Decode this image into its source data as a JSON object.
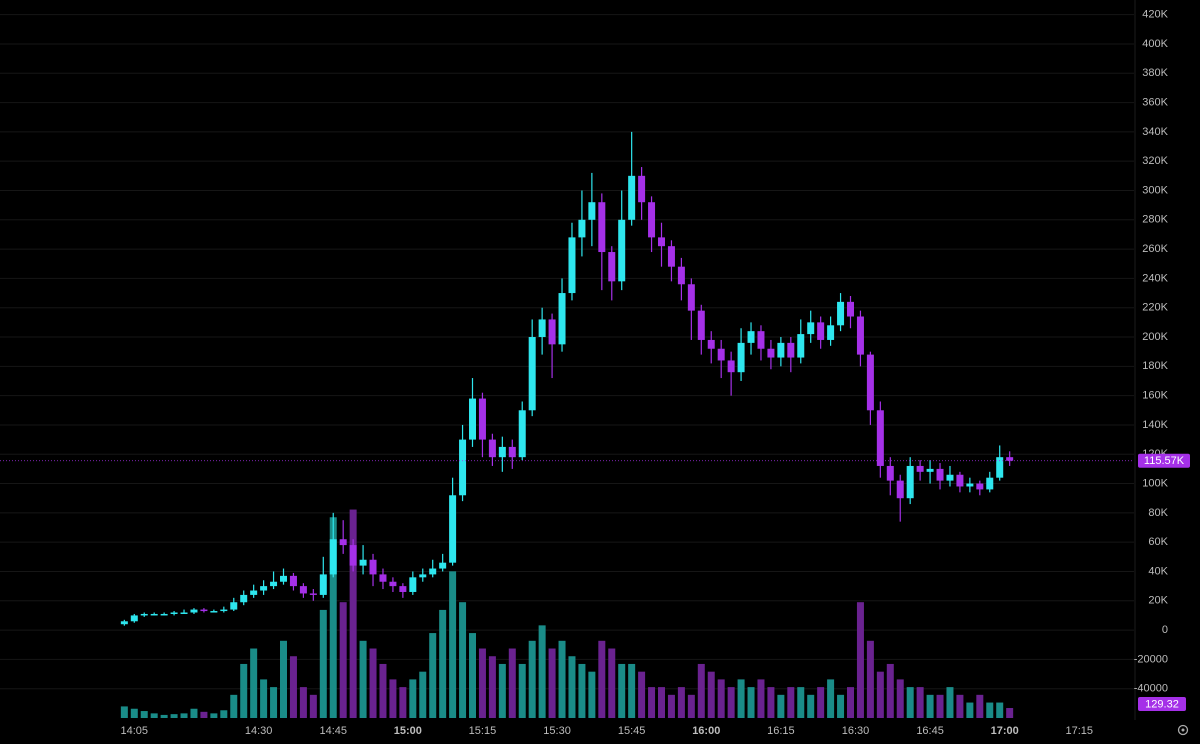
{
  "chart_data": {
    "type": "candlestick",
    "x": [
      "14:03",
      "14:05",
      "14:07",
      "14:09",
      "14:11",
      "14:13",
      "14:15",
      "14:17",
      "14:19",
      "14:21",
      "14:23",
      "14:25",
      "14:27",
      "14:29",
      "14:31",
      "14:33",
      "14:35",
      "14:37",
      "14:39",
      "14:41",
      "14:43",
      "14:45",
      "14:47",
      "14:49",
      "14:51",
      "14:53",
      "14:55",
      "14:57",
      "14:59",
      "15:01",
      "15:03",
      "15:05",
      "15:07",
      "15:09",
      "15:11",
      "15:13",
      "15:15",
      "15:17",
      "15:19",
      "15:21",
      "15:23",
      "15:25",
      "15:27",
      "15:29",
      "15:31",
      "15:33",
      "15:35",
      "15:37",
      "15:39",
      "15:41",
      "15:43",
      "15:45",
      "15:47",
      "15:49",
      "15:51",
      "15:53",
      "15:55",
      "15:57",
      "15:59",
      "16:01",
      "16:03",
      "16:05",
      "16:07",
      "16:09",
      "16:11",
      "16:13",
      "16:15",
      "16:17",
      "16:19",
      "16:21",
      "16:23",
      "16:25",
      "16:27",
      "16:29",
      "16:31",
      "16:33",
      "16:35",
      "16:37",
      "16:39",
      "16:41",
      "16:43",
      "16:45",
      "16:47",
      "16:49",
      "16:51",
      "16:53",
      "16:55",
      "16:57",
      "16:59",
      "17:01"
    ],
    "open": [
      4000,
      6000,
      10000,
      11000,
      11000,
      11000,
      12000,
      12000,
      14000,
      13000,
      13000,
      14000,
      19000,
      24000,
      27000,
      30000,
      33000,
      37000,
      30000,
      25000,
      24000,
      38000,
      62000,
      58000,
      44000,
      48000,
      38000,
      33000,
      30000,
      26000,
      36000,
      38000,
      42000,
      46000,
      92000,
      130000,
      158000,
      130000,
      118000,
      125000,
      118000,
      150000,
      200000,
      212000,
      195000,
      230000,
      268000,
      280000,
      292000,
      258000,
      238000,
      280000,
      310000,
      292000,
      268000,
      262000,
      248000,
      236000,
      218000,
      198000,
      192000,
      184000,
      176000,
      196000,
      204000,
      192000,
      186000,
      196000,
      186000,
      202000,
      210000,
      198000,
      208000,
      224000,
      214000,
      188000,
      150000,
      112000,
      102000,
      90000,
      112000,
      108000,
      110000,
      102000,
      106000,
      98000,
      100000,
      96000,
      104000,
      118000
    ],
    "high": [
      7000,
      11000,
      12000,
      12000,
      12000,
      13000,
      14000,
      15000,
      15000,
      14000,
      16000,
      22000,
      27000,
      31000,
      34000,
      40000,
      42000,
      39000,
      32000,
      28000,
      50000,
      80000,
      75000,
      62000,
      58000,
      52000,
      42000,
      36000,
      32000,
      40000,
      42000,
      48000,
      52000,
      104000,
      140000,
      172000,
      162000,
      134000,
      132000,
      130000,
      156000,
      212000,
      220000,
      216000,
      240000,
      278000,
      300000,
      312000,
      298000,
      262000,
      300000,
      340000,
      316000,
      296000,
      278000,
      266000,
      254000,
      240000,
      222000,
      204000,
      198000,
      190000,
      206000,
      210000,
      208000,
      198000,
      200000,
      200000,
      212000,
      218000,
      214000,
      214000,
      230000,
      228000,
      218000,
      190000,
      156000,
      118000,
      106000,
      118000,
      116000,
      116000,
      114000,
      112000,
      108000,
      104000,
      102000,
      108000,
      126000,
      122000
    ],
    "low": [
      3000,
      5000,
      9000,
      10000,
      10000,
      10000,
      11000,
      11000,
      12000,
      12000,
      12000,
      13000,
      17000,
      22000,
      24000,
      28000,
      31000,
      27000,
      22000,
      20000,
      22000,
      36000,
      52000,
      40000,
      38000,
      30000,
      28000,
      26000,
      22000,
      24000,
      33000,
      36000,
      40000,
      44000,
      88000,
      125000,
      118000,
      112000,
      108000,
      110000,
      116000,
      146000,
      188000,
      172000,
      190000,
      225000,
      255000,
      262000,
      232000,
      225000,
      232000,
      276000,
      280000,
      258000,
      248000,
      238000,
      225000,
      198000,
      188000,
      182000,
      172000,
      160000,
      170000,
      188000,
      184000,
      178000,
      180000,
      176000,
      182000,
      196000,
      192000,
      194000,
      204000,
      206000,
      180000,
      140000,
      104000,
      92000,
      74000,
      86000,
      102000,
      100000,
      96000,
      98000,
      94000,
      94000,
      92000,
      94000,
      102000,
      112000
    ],
    "close": [
      6000,
      10000,
      11000,
      11000,
      11000,
      12000,
      12000,
      14000,
      13000,
      13000,
      14000,
      19000,
      24000,
      27000,
      30000,
      33000,
      37000,
      30000,
      25000,
      24000,
      38000,
      62000,
      58000,
      44000,
      48000,
      38000,
      33000,
      30000,
      26000,
      36000,
      38000,
      42000,
      46000,
      92000,
      130000,
      158000,
      130000,
      118000,
      125000,
      118000,
      150000,
      200000,
      212000,
      195000,
      230000,
      268000,
      280000,
      292000,
      258000,
      238000,
      280000,
      310000,
      292000,
      268000,
      262000,
      248000,
      236000,
      218000,
      198000,
      192000,
      184000,
      176000,
      196000,
      204000,
      192000,
      186000,
      196000,
      186000,
      202000,
      210000,
      198000,
      208000,
      224000,
      214000,
      188000,
      150000,
      112000,
      102000,
      90000,
      112000,
      108000,
      110000,
      102000,
      106000,
      98000,
      100000,
      96000,
      104000,
      118000,
      115570
    ],
    "volume": [
      150,
      120,
      90,
      60,
      40,
      50,
      60,
      120,
      80,
      60,
      100,
      300,
      700,
      900,
      500,
      400,
      1000,
      800,
      400,
      300,
      1400,
      2600,
      1500,
      2700,
      1000,
      900,
      700,
      500,
      400,
      500,
      600,
      1100,
      1400,
      1900,
      1500,
      1100,
      900,
      800,
      700,
      900,
      700,
      1000,
      1200,
      900,
      1000,
      800,
      700,
      600,
      1000,
      900,
      700,
      700,
      600,
      400,
      400,
      300,
      400,
      300,
      700,
      600,
      500,
      400,
      500,
      400,
      500,
      400,
      300,
      400,
      400,
      300,
      400,
      500,
      300,
      400,
      1500,
      1000,
      600,
      700,
      500,
      400,
      400,
      300,
      300,
      400,
      300,
      200,
      300,
      200,
      200,
      129.32
    ],
    "up_color": "#2ee6ee",
    "down_color": "#a530e8",
    "volume_up_color": "#1a8c88",
    "volume_down_color": "#6a2290",
    "ylim": [
      -60000,
      430000
    ],
    "volume_ylim": [
      0,
      9300
    ],
    "xlim": [
      "13:38",
      "17:26"
    ],
    "yticks": [
      {
        "value": -40000,
        "label": "-40000"
      },
      {
        "value": -20000,
        "label": "-20000"
      },
      0,
      {
        "value": 20000,
        "label": "20K"
      },
      {
        "value": 40000,
        "label": "40K"
      },
      {
        "value": 60000,
        "label": "60K"
      },
      {
        "value": 80000,
        "label": "80K"
      },
      {
        "value": 100000,
        "label": "100K"
      },
      {
        "value": 120000,
        "label": "120K"
      },
      {
        "value": 140000,
        "label": "140K"
      },
      {
        "value": 160000,
        "label": "160K"
      },
      {
        "value": 180000,
        "label": "180K"
      },
      {
        "value": 200000,
        "label": "200K"
      },
      {
        "value": 220000,
        "label": "220K"
      },
      {
        "value": 240000,
        "label": "240K"
      },
      {
        "value": 260000,
        "label": "260K"
      },
      {
        "value": 280000,
        "label": "280K"
      },
      {
        "value": 300000,
        "label": "300K"
      },
      {
        "value": 320000,
        "label": "320K"
      },
      {
        "value": 340000,
        "label": "340K"
      },
      {
        "value": 360000,
        "label": "360K"
      },
      {
        "value": 380000,
        "label": "380K"
      },
      {
        "value": 400000,
        "label": "400K"
      },
      {
        "value": 420000,
        "label": "420K"
      }
    ],
    "xticks": [
      "14:05",
      "14:30",
      "14:45",
      "15:00",
      "15:15",
      "15:30",
      "15:45",
      "16:00",
      "16:15",
      "16:30",
      "16:45",
      "17:00",
      "17:15"
    ],
    "last_price": {
      "value": 115570,
      "label": "115.57K"
    },
    "grid": true
  }
}
